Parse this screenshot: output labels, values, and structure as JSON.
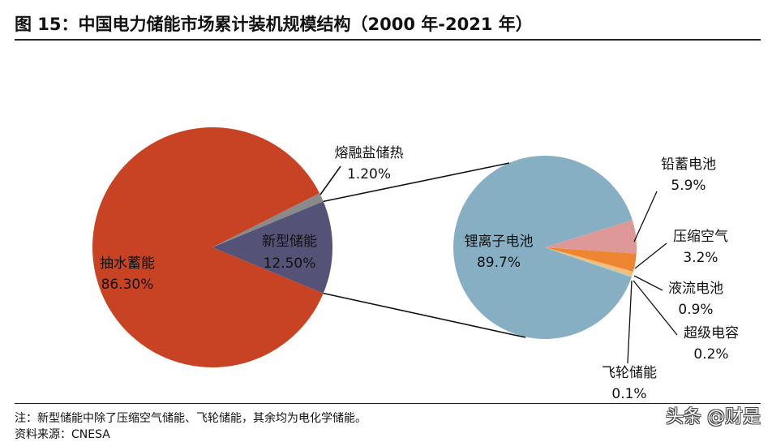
{
  "figure": {
    "title": "图 15：中国电力储能市场累计装机规模结构（2000 年-2021 年）",
    "note": "注：新型储能中除了压缩空气储能、飞轮储能，其余均为电化学储能。",
    "source": "资料来源：CNESA",
    "watermark": "头条 @财是"
  },
  "chart_data": [
    {
      "type": "pie",
      "title": "",
      "slices": [
        {
          "label": "抽水蓄能",
          "value": 86.3,
          "value_label": "86.30%",
          "color": "#c84224"
        },
        {
          "label": "熔融盐储热",
          "value": 1.2,
          "value_label": "1.20%",
          "color": "#8a8a8a"
        },
        {
          "label": "新型储能",
          "value": 12.5,
          "value_label": "12.50%",
          "color": "#545276"
        }
      ]
    },
    {
      "type": "pie",
      "title": "",
      "slices": [
        {
          "label": "锂离子电池",
          "value": 89.7,
          "value_label": "89.7%",
          "color": "#87afc3"
        },
        {
          "label": "铅蓄电池",
          "value": 5.9,
          "value_label": "5.9%",
          "color": "#df9898"
        },
        {
          "label": "压缩空气",
          "value": 3.2,
          "value_label": "3.2%",
          "color": "#ee8530"
        },
        {
          "label": "液流电池",
          "value": 0.9,
          "value_label": "0.9%",
          "color": "#f2be7a"
        },
        {
          "label": "超级电容",
          "value": 0.2,
          "value_label": "0.2%",
          "color": "#9fc2dd"
        },
        {
          "label": "飞轮储能",
          "value": 0.1,
          "value_label": "0.1%",
          "color": "#4ab8a0"
        }
      ]
    }
  ]
}
